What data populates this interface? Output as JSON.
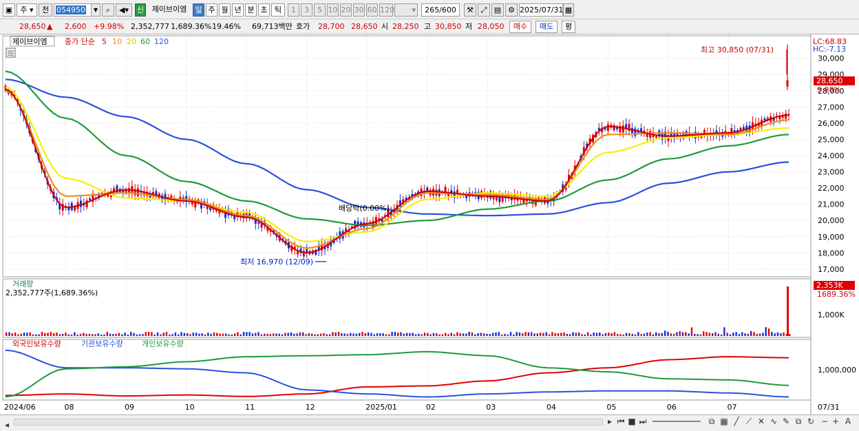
{
  "toolbar": {
    "market": "주",
    "period_prefix": "전",
    "code": "054950",
    "badge": "신",
    "stock_name": "제이브이엠",
    "periods": [
      "일",
      "주",
      "월",
      "년",
      "분",
      "초",
      "틱"
    ],
    "intervals": [
      "1",
      "3",
      "5",
      "10",
      "20",
      "30",
      "60",
      "120"
    ],
    "count": "265",
    "count_total": "/600",
    "date": "2025/07/31"
  },
  "quote": {
    "price": "28,650",
    "change": "2,600",
    "change_pct": "+9.98%",
    "volume": "2,352,777",
    "volume_pct": "1,689.36%",
    "turnover": "19.46%",
    "amount": "69,713백만",
    "ask_label": "호가",
    "ask": "28,700",
    "bid": "28,650",
    "open_label": "시",
    "open": "28,250",
    "high_label": "고",
    "high": "30,850",
    "low_label": "저",
    "low": "28,050",
    "buy_label": "매수",
    "sell_label": "매도",
    "eval_label": "평"
  },
  "price_panel": {
    "title": "제이브이엠",
    "ma_label": "종가 단순",
    "ma_periods": [
      "5",
      "10",
      "20",
      "60",
      "120"
    ],
    "lc": "LC:68.83",
    "hc": "HC:-7.13",
    "max_label": "최고 30,850 (07/31)",
    "min_label": "최저 16,970 (12/09)",
    "dividend_label": "배당락(0.00%)",
    "last_price": "28,650",
    "last_pct": "9.98%",
    "y_ticks": [
      "30,000",
      "29,000",
      "28,000",
      "27,000",
      "26,000",
      "25,000",
      "24,000",
      "23,000",
      "22,000",
      "21,000",
      "20,000",
      "19,000",
      "18,000",
      "17,000"
    ]
  },
  "volume_panel": {
    "title": "거래량",
    "value_label": "2,352,777주(1,689.36%)",
    "last": "2,353K",
    "last_pct": "1689.36%",
    "tick": "1,000K"
  },
  "holding_panel": {
    "series": [
      "외국인보유수량",
      "기관보유수량",
      "개인보유수량"
    ],
    "tick": "1,000,000"
  },
  "x_axis": [
    "2024/06",
    "08",
    "09",
    "10",
    "11",
    "12",
    "2025/01",
    "02",
    "03",
    "04",
    "05",
    "06",
    "07"
  ],
  "x_axis_right": "07/31",
  "colors": {
    "up": "#e00000",
    "down": "#1030d0",
    "ma5": "#cc0000",
    "ma10": "#f08c1e",
    "ma20": "#f5f000",
    "ma60": "#1e9a3c",
    "ma120": "#2850e0"
  },
  "chart_data": {
    "type": "line",
    "x": [
      "2024/06",
      "08",
      "09",
      "10",
      "11",
      "12",
      "2025/01",
      "02",
      "03",
      "04",
      "05",
      "06",
      "07",
      "07/31"
    ],
    "series": [
      {
        "name": "5",
        "values": [
          28100,
          20800,
          21900,
          21200,
          20200,
          18000,
          19800,
          21800,
          21500,
          21200,
          25800,
          25200,
          25400,
          26500
        ]
      },
      {
        "name": "10",
        "values": [
          28000,
          21500,
          21700,
          21300,
          20300,
          18300,
          19500,
          21700,
          21600,
          21300,
          25300,
          25400,
          25300,
          26200
        ]
      },
      {
        "name": "20",
        "values": [
          28200,
          22600,
          21400,
          21200,
          20500,
          18700,
          19300,
          21300,
          21700,
          21500,
          24200,
          25100,
          25300,
          25700
        ]
      },
      {
        "name": "60",
        "values": [
          29200,
          26300,
          24000,
          22400,
          21200,
          20100,
          19700,
          20000,
          20700,
          21200,
          22500,
          23800,
          24600,
          25300
        ]
      },
      {
        "name": "120",
        "values": [
          28700,
          27600,
          26400,
          25000,
          23500,
          21900,
          20800,
          20400,
          20300,
          20400,
          21100,
          22300,
          23000,
          23600
        ]
      }
    ],
    "ylim": [
      16700,
      31300
    ]
  }
}
